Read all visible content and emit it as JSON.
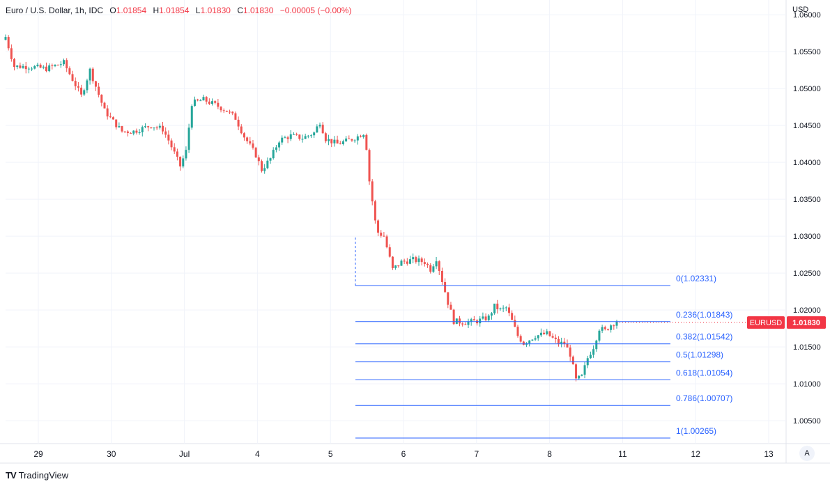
{
  "header": {
    "symbol_title": "Euro / U.S. Dollar, 1h, IDC",
    "open_label": "O",
    "open_value": "1.01854",
    "high_label": "H",
    "high_value": "1.01854",
    "low_label": "L",
    "low_value": "1.01830",
    "close_label": "C",
    "close_value": "1.01830",
    "change": "−0.00005 (−0.00%)"
  },
  "price_axis_currency": "USD",
  "brand": "TradingView",
  "auto_scale_label": "A",
  "colors": {
    "up": "#26a69a",
    "down": "#ef5350",
    "fib_line": "#2962ff",
    "fib_text": "#2962ff",
    "grid": "#f0f3fa",
    "price_tag": "#f23645"
  },
  "chart_data": {
    "type": "candlestick",
    "symbol": "EURUSD",
    "timeframe": "1h",
    "ylim": [
      1.0019,
      1.062
    ],
    "y_ticks": [
      "1.00500",
      "1.01000",
      "1.01500",
      "1.02000",
      "1.02500",
      "1.03000",
      "1.03500",
      "1.04000",
      "1.04500",
      "1.05000",
      "1.05500",
      "1.06000"
    ],
    "x_ticks": [
      "29",
      "30",
      "Jul",
      "4",
      "5",
      "6",
      "7",
      "8",
      "11",
      "12",
      "13"
    ],
    "last_price": {
      "label": "EURUSD",
      "value": "1.01830"
    },
    "fibonacci": {
      "levels": [
        {
          "label": "0(1.02331)",
          "price": 1.02331
        },
        {
          "label": "0.236(1.01843)",
          "price": 1.01843
        },
        {
          "label": "0.382(1.01542)",
          "price": 1.01542
        },
        {
          "label": "0.5(1.01298)",
          "price": 1.01298
        },
        {
          "label": "0.618(1.01054)",
          "price": 1.01054
        },
        {
          "label": "0.786(1.00707)",
          "price": 1.00707
        },
        {
          "label": "1(1.00265)",
          "price": 1.00265
        }
      ]
    },
    "path": [
      [
        0,
        1.057
      ],
      [
        3,
        1.053
      ],
      [
        8,
        1.053
      ],
      [
        14,
        1.0527
      ],
      [
        20,
        1.0535
      ],
      [
        26,
        1.049
      ],
      [
        29,
        1.0525
      ],
      [
        34,
        1.047
      ],
      [
        36,
        1.046
      ],
      [
        40,
        1.0442
      ],
      [
        44,
        1.0442
      ],
      [
        50,
        1.045
      ],
      [
        54,
        1.0445
      ],
      [
        56,
        1.043
      ],
      [
        60,
        1.0395
      ],
      [
        62,
        1.0415
      ],
      [
        64,
        1.048
      ],
      [
        68,
        1.0485
      ],
      [
        72,
        1.0478
      ],
      [
        76,
        1.047
      ],
      [
        79,
        1.046
      ],
      [
        82,
        1.0435
      ],
      [
        86,
        1.041
      ],
      [
        88,
        1.039
      ],
      [
        91,
        1.0405
      ],
      [
        94,
        1.043
      ],
      [
        98,
        1.0436
      ],
      [
        102,
        1.0433
      ],
      [
        106,
        1.044
      ],
      [
        108,
        1.0455
      ],
      [
        110,
        1.0432
      ],
      [
        114,
        1.0425
      ],
      [
        118,
        1.043
      ],
      [
        121,
        1.0435
      ],
      [
        123,
        1.044
      ],
      [
        124,
        1.042
      ],
      [
        125,
        1.0375
      ],
      [
        127,
        1.032
      ],
      [
        128,
        1.0305
      ],
      [
        130,
        1.03
      ],
      [
        133,
        1.0255
      ],
      [
        136,
        1.0265
      ],
      [
        140,
        1.0268
      ],
      [
        144,
        1.0265
      ],
      [
        146,
        1.0255
      ],
      [
        148,
        1.027
      ],
      [
        150,
        1.024
      ],
      [
        152,
        1.021
      ],
      [
        154,
        1.0185
      ],
      [
        158,
        1.0183
      ],
      [
        162,
        1.0185
      ],
      [
        166,
        1.019
      ],
      [
        168,
        1.0205
      ],
      [
        170,
        1.02
      ],
      [
        172,
        1.0203
      ],
      [
        174,
        1.0185
      ],
      [
        176,
        1.0165
      ],
      [
        178,
        1.0155
      ],
      [
        182,
        1.0165
      ],
      [
        186,
        1.0168
      ],
      [
        190,
        1.0155
      ],
      [
        192,
        1.0155
      ],
      [
        194,
        1.014
      ],
      [
        196,
        1.0105
      ],
      [
        198,
        1.011
      ],
      [
        200,
        1.0135
      ],
      [
        202,
        1.015
      ],
      [
        204,
        1.0175
      ],
      [
        206,
        1.0172
      ],
      [
        208,
        1.018
      ],
      [
        210,
        1.01854
      ]
    ]
  }
}
